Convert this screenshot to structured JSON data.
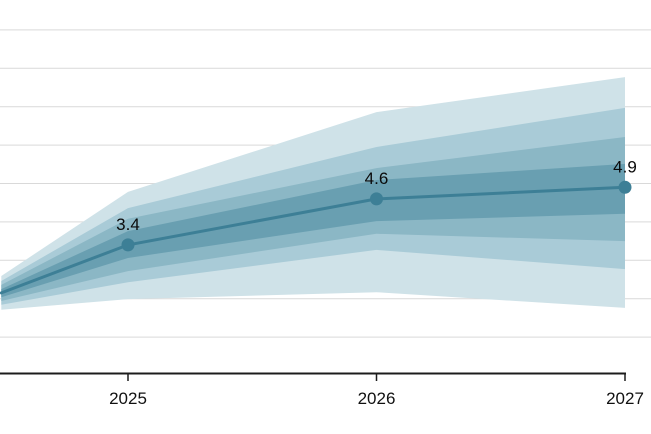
{
  "chart_data": {
    "type": "line",
    "subtype": "fan-chart-with-uncertainty-bands",
    "title": "",
    "xlabel": "",
    "ylabel": "",
    "x_tick_labels": [
      "2025",
      "2026",
      "2027"
    ],
    "x_tick_years": [
      2025,
      2026,
      2027
    ],
    "x_range_years": [
      2024.49,
      2027
    ],
    "ylim": [
      0,
      9.75
    ],
    "gridline_values": [
      1,
      2,
      3,
      4,
      5,
      6,
      7,
      8,
      9
    ],
    "grid": true,
    "legend": "none",
    "series": {
      "name": "central-projection",
      "points": [
        {
          "year": 2024.49,
          "value": 2.15
        },
        {
          "year": 2025,
          "value": 3.4,
          "label": "3.4"
        },
        {
          "year": 2026,
          "value": 4.6,
          "label": "4.6"
        },
        {
          "year": 2027,
          "value": 4.9,
          "label": "4.9"
        }
      ]
    },
    "bands": [
      {
        "name": "uncertainty-band-outer",
        "color": "#cfe2e8",
        "points": [
          {
            "year": 2024.49,
            "lo": 1.71,
            "hi": 2.59
          },
          {
            "year": 2025,
            "lo": 1.99,
            "hi": 4.78
          },
          {
            "year": 2026,
            "lo": 2.17,
            "hi": 6.86
          },
          {
            "year": 2027,
            "lo": 1.76,
            "hi": 7.77
          }
        ]
      },
      {
        "name": "uncertainty-band-mid-outer",
        "color": "#a9cbd7",
        "points": [
          {
            "year": 2024.49,
            "lo": 1.84,
            "hi": 2.46
          },
          {
            "year": 2025,
            "lo": 2.43,
            "hi": 4.36
          },
          {
            "year": 2026,
            "lo": 3.27,
            "hi": 5.95
          },
          {
            "year": 2027,
            "lo": 2.77,
            "hi": 6.97
          }
        ]
      },
      {
        "name": "uncertainty-band-mid-inner",
        "color": "#8bb7c5",
        "points": [
          {
            "year": 2024.49,
            "lo": 1.94,
            "hi": 2.36
          },
          {
            "year": 2025,
            "lo": 2.72,
            "hi": 4.08
          },
          {
            "year": 2026,
            "lo": 3.69,
            "hi": 5.4
          },
          {
            "year": 2027,
            "lo": 3.5,
            "hi": 6.21
          }
        ]
      },
      {
        "name": "uncertainty-band-inner",
        "color": "#699fb1",
        "points": [
          {
            "year": 2024.49,
            "lo": 2.04,
            "hi": 2.25
          },
          {
            "year": 2025,
            "lo": 3.06,
            "hi": 3.76
          },
          {
            "year": 2026,
            "lo": 4.02,
            "hi": 5.09
          },
          {
            "year": 2027,
            "lo": 4.21,
            "hi": 5.51
          }
        ]
      }
    ],
    "colors": {
      "line": "#3d7f96",
      "marker": "#3d7f96",
      "gridline": "#d9d9d9",
      "axis": "#1c1c1c",
      "label_text": "#0a0a0a",
      "tick_text": "#111111",
      "background": "#ffffff"
    }
  }
}
